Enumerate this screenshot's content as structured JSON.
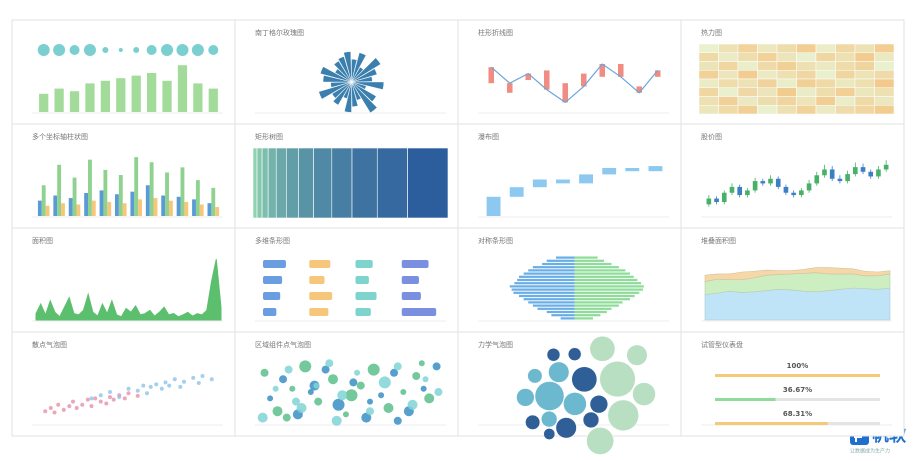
{
  "chart_data": [
    {
      "type": "bar",
      "categories": [
        null,
        null,
        null,
        null,
        null,
        null,
        null,
        null,
        null,
        null,
        null,
        null
      ],
      "values": [
        35,
        45,
        40,
        55,
        60,
        65,
        70,
        75,
        60,
        90,
        55,
        45
      ],
      "sizes": [
        6,
        6,
        5,
        6,
        3,
        2,
        3,
        5,
        6,
        6,
        6,
        5
      ],
      "color": "#a3dc9a",
      "bubble_color": "#7ccfd0",
      "ylim": [
        0,
        100
      ]
    },
    {
      "type": "polar-bar",
      "title": "南丁格尔玫瑰图",
      "values": [
        60,
        80,
        45,
        90,
        70,
        55,
        85,
        40,
        75,
        95,
        50,
        65,
        80,
        45,
        70,
        60,
        90,
        55,
        75,
        85,
        50,
        65,
        70,
        80
      ],
      "color": "#3a7fae",
      "rlim": [
        0,
        100
      ]
    },
    {
      "type": "line-range",
      "title": "柱形折线图",
      "categories": [
        null,
        null,
        null,
        null,
        null,
        null,
        null,
        null,
        null,
        null
      ],
      "values": [
        70,
        45,
        60,
        35,
        15,
        40,
        75,
        55,
        30,
        65
      ],
      "values2": [
        45,
        30,
        50,
        65,
        45,
        60,
        55,
        75,
        40,
        55
      ],
      "color": "#6aa6d9",
      "range_color": "#f08c82",
      "ylim": [
        0,
        100
      ]
    },
    {
      "type": "heatmap",
      "title": "热力图",
      "values": [
        [
          12,
          45,
          78,
          33,
          56,
          90,
          21,
          67,
          44,
          88
        ],
        [
          65,
          23,
          54,
          81,
          37,
          14,
          72,
          49,
          95,
          30
        ],
        [
          40,
          70,
          18,
          62,
          85,
          47,
          29,
          58,
          76,
          11
        ],
        [
          83,
          36,
          91,
          27,
          50,
          68,
          15,
          73,
          42,
          60
        ],
        [
          25,
          58,
          44,
          77,
          19,
          84,
          63,
          31,
          52,
          97
        ],
        [
          71,
          14,
          66,
          39,
          93,
          22,
          55,
          87,
          35,
          48
        ],
        [
          48,
          82,
          29,
          56,
          74,
          41,
          90,
          20,
          64,
          33
        ],
        [
          36,
          61,
          85,
          13,
          47,
          79,
          26,
          57,
          69,
          92
        ]
      ],
      "color_range": [
        "#e8f6d8",
        "#f3c98a"
      ]
    },
    {
      "type": "grouped-bar",
      "title": "多个坐标轴柱状图",
      "categories": [
        null,
        null,
        null,
        null,
        null,
        null,
        null,
        null,
        null,
        null,
        null,
        null
      ],
      "series": [
        {
          "color": "#5a9bd5",
          "values": [
            60,
            80,
            70,
            90,
            100,
            85,
            95,
            120,
            80,
            75,
            65,
            50
          ]
        },
        {
          "color": "#8fd18f",
          "values": [
            120,
            200,
            150,
            220,
            180,
            160,
            230,
            210,
            170,
            190,
            140,
            110
          ]
        },
        {
          "color": "#f6c77a",
          "values": [
            40,
            50,
            45,
            60,
            55,
            50,
            65,
            70,
            60,
            55,
            45,
            35
          ]
        }
      ],
      "ylim": [
        0,
        250
      ]
    },
    {
      "type": "treemap",
      "title": "矩形树图",
      "values": [
        40,
        30,
        25,
        20,
        18,
        15,
        12,
        10,
        8,
        6,
        5,
        4
      ],
      "color_range": [
        "#2c5e9e",
        "#8fd3b0"
      ]
    },
    {
      "type": "waterfall",
      "title": "瀑布图",
      "categories": [
        null,
        null,
        null,
        null,
        null,
        null,
        null,
        null
      ],
      "values": [
        30,
        15,
        12,
        -6,
        14,
        10,
        -5,
        8
      ],
      "color": "#8cc8f0",
      "ylim": [
        0,
        100
      ]
    },
    {
      "type": "candlestick",
      "title": "股价图",
      "open": [
        40,
        45,
        42,
        50,
        55,
        48,
        52,
        60,
        58,
        62,
        55,
        50,
        48,
        52,
        58,
        65,
        70,
        62,
        60,
        66,
        72,
        68,
        64,
        70
      ],
      "close": [
        45,
        42,
        50,
        55,
        48,
        52,
        60,
        58,
        62,
        55,
        50,
        48,
        52,
        58,
        65,
        70,
        62,
        60,
        66,
        72,
        68,
        64,
        70,
        74
      ],
      "low": [
        38,
        40,
        40,
        48,
        46,
        46,
        50,
        56,
        56,
        53,
        48,
        46,
        46,
        50,
        56,
        63,
        60,
        58,
        58,
        64,
        66,
        62,
        62,
        68
      ],
      "high": [
        48,
        47,
        52,
        58,
        57,
        54,
        63,
        62,
        65,
        64,
        57,
        52,
        54,
        61,
        68,
        74,
        73,
        65,
        69,
        76,
        75,
        70,
        73,
        78
      ],
      "up_color": "#48b068",
      "down_color": "#3b7fc4",
      "ylim": [
        30,
        85
      ]
    },
    {
      "type": "area",
      "title": "面积图",
      "values": [
        10,
        25,
        8,
        30,
        12,
        5,
        20,
        35,
        10,
        8,
        15,
        40,
        12,
        6,
        25,
        10,
        30,
        8,
        5,
        18,
        12,
        22,
        8,
        10,
        15,
        6,
        12,
        20,
        8,
        10,
        5,
        8,
        12,
        6,
        10,
        8,
        15,
        60,
        95,
        20
      ],
      "color": "#5cbf6e",
      "ylim": [
        0,
        100
      ]
    },
    {
      "type": "dot-bar",
      "title": "多维条形图",
      "values": [
        [
          60,
          55,
          45,
          70
        ],
        [
          50,
          40,
          35,
          45
        ],
        [
          45,
          60,
          55,
          50
        ],
        [
          35,
          50,
          40,
          90
        ]
      ],
      "colors": [
        "#6a9ee0",
        "#f6c77a",
        "#7ed3cf",
        "#7a8fe0"
      ],
      "xlim": [
        0,
        100
      ]
    },
    {
      "type": "pyramid",
      "title": "对称条形图",
      "left": [
        20,
        30,
        35,
        45,
        50,
        55,
        60,
        62,
        65,
        70,
        68,
        66,
        60,
        55,
        50,
        45,
        40,
        30,
        25,
        15
      ],
      "right": [
        25,
        32,
        40,
        48,
        55,
        60,
        64,
        68,
        72,
        75,
        74,
        70,
        65,
        60,
        52,
        48,
        40,
        35,
        28,
        20
      ],
      "colors": [
        "#6aaee8",
        "#8fdc9a"
      ],
      "xlim": [
        0,
        100
      ]
    },
    {
      "type": "stacked-area",
      "title": "堆叠面积图",
      "series": [
        {
          "color": "#bfe3f7",
          "values": [
            40,
            42,
            45,
            43,
            44,
            46,
            48,
            47,
            45,
            44,
            46,
            48,
            50,
            49,
            48,
            50
          ]
        },
        {
          "color": "#cdeec0",
          "values": [
            20,
            22,
            18,
            20,
            22,
            24,
            23,
            25,
            28,
            30,
            26,
            24,
            22,
            20,
            21,
            22
          ]
        },
        {
          "color": "#f6d8a8",
          "values": [
            10,
            8,
            9,
            12,
            10,
            8,
            6,
            5,
            6,
            8,
            10,
            9,
            8,
            7,
            6,
            5
          ]
        }
      ],
      "ylim": [
        0,
        100
      ]
    },
    {
      "type": "scatter",
      "title": "散点气泡图",
      "series": [
        {
          "color": "#e98fa8",
          "x": [
            5,
            8,
            10,
            12,
            15,
            18,
            20,
            22,
            25,
            28,
            30,
            32,
            35,
            38,
            40,
            42,
            45,
            48,
            50,
            55
          ],
          "values": [
            20,
            25,
            18,
            30,
            22,
            28,
            35,
            25,
            30,
            38,
            28,
            40,
            35,
            32,
            42,
            38,
            45,
            40,
            48,
            44
          ]
        },
        {
          "color": "#8cc4ea",
          "x": [
            30,
            35,
            40,
            45,
            50,
            55,
            58,
            60,
            62,
            65,
            68,
            70,
            72,
            75,
            78,
            80,
            85,
            88,
            90,
            95
          ],
          "values": [
            40,
            45,
            50,
            42,
            55,
            52,
            60,
            48,
            58,
            62,
            55,
            65,
            60,
            70,
            58,
            66,
            72,
            64,
            75,
            70
          ]
        }
      ],
      "xlim": [
        0,
        100
      ],
      "ylim": [
        0,
        100
      ]
    },
    {
      "type": "bubble",
      "title": "区域组件点气泡图",
      "series": [
        {
          "color": "#5cc08b",
          "x": [
            3,
            10,
            18,
            25,
            32,
            40,
            47,
            55,
            62,
            70,
            78,
            85,
            92,
            15,
            50,
            88
          ],
          "values": [
            80,
            20,
            55,
            90,
            35,
            70,
            15,
            60,
            85,
            25,
            50,
            75,
            40,
            10,
            45,
            95
          ],
          "sizes": [
            4,
            5,
            3,
            6,
            4,
            5,
            3,
            4,
            6,
            5,
            3,
            4,
            5,
            4,
            6,
            3
          ]
        },
        {
          "color": "#3a8fc4",
          "x": [
            6,
            13,
            21,
            28,
            36,
            43,
            51,
            58,
            66,
            73,
            81,
            89,
            96,
            30,
            60,
            75
          ],
          "values": [
            40,
            70,
            15,
            50,
            85,
            30,
            65,
            10,
            45,
            80,
            20,
            55,
            90,
            60,
            35,
            5
          ],
          "sizes": [
            3,
            4,
            5,
            3,
            4,
            6,
            4,
            5,
            3,
            4,
            5,
            3,
            4,
            5,
            3,
            4
          ]
        },
        {
          "color": "#7fd3d6",
          "x": [
            2,
            9,
            16,
            23,
            31,
            38,
            45,
            53,
            60,
            68,
            75,
            83,
            90,
            97,
            42,
            20
          ],
          "values": [
            10,
            55,
            85,
            25,
            60,
            95,
            45,
            80,
            20,
            65,
            90,
            30,
            70,
            50,
            5,
            35
          ],
          "sizes": [
            5,
            3,
            4,
            5,
            3,
            4,
            5,
            3,
            4,
            6,
            4,
            5,
            3,
            4,
            5,
            4
          ]
        }
      ],
      "xlim": [
        0,
        100
      ],
      "ylim": [
        0,
        100
      ]
    },
    {
      "type": "packed",
      "title": "力学气泡图",
      "series": [
        {
          "color": "#6bb8cf",
          "values": [
            40,
            25,
            20,
            15,
            12,
            10
          ]
        },
        {
          "color": "#2f5f96",
          "values": [
            30,
            20,
            15,
            12,
            10,
            8,
            8,
            6
          ]
        },
        {
          "color": "#b9dfc3",
          "values": [
            60,
            45,
            35,
            30,
            25,
            20
          ]
        }
      ]
    },
    {
      "type": "gauge",
      "title": "试管型仪表盘",
      "values": [
        100,
        36.67,
        68.31
      ],
      "value_labels": [
        "100%",
        "36.67%",
        "68.31%"
      ],
      "colors": [
        "#f5c87a",
        "#8fdc9a",
        "#f5c87a"
      ],
      "xlim": [
        0,
        100
      ]
    }
  ],
  "brand": {
    "name": "帆软",
    "slogan": "让数据成为生产力"
  }
}
